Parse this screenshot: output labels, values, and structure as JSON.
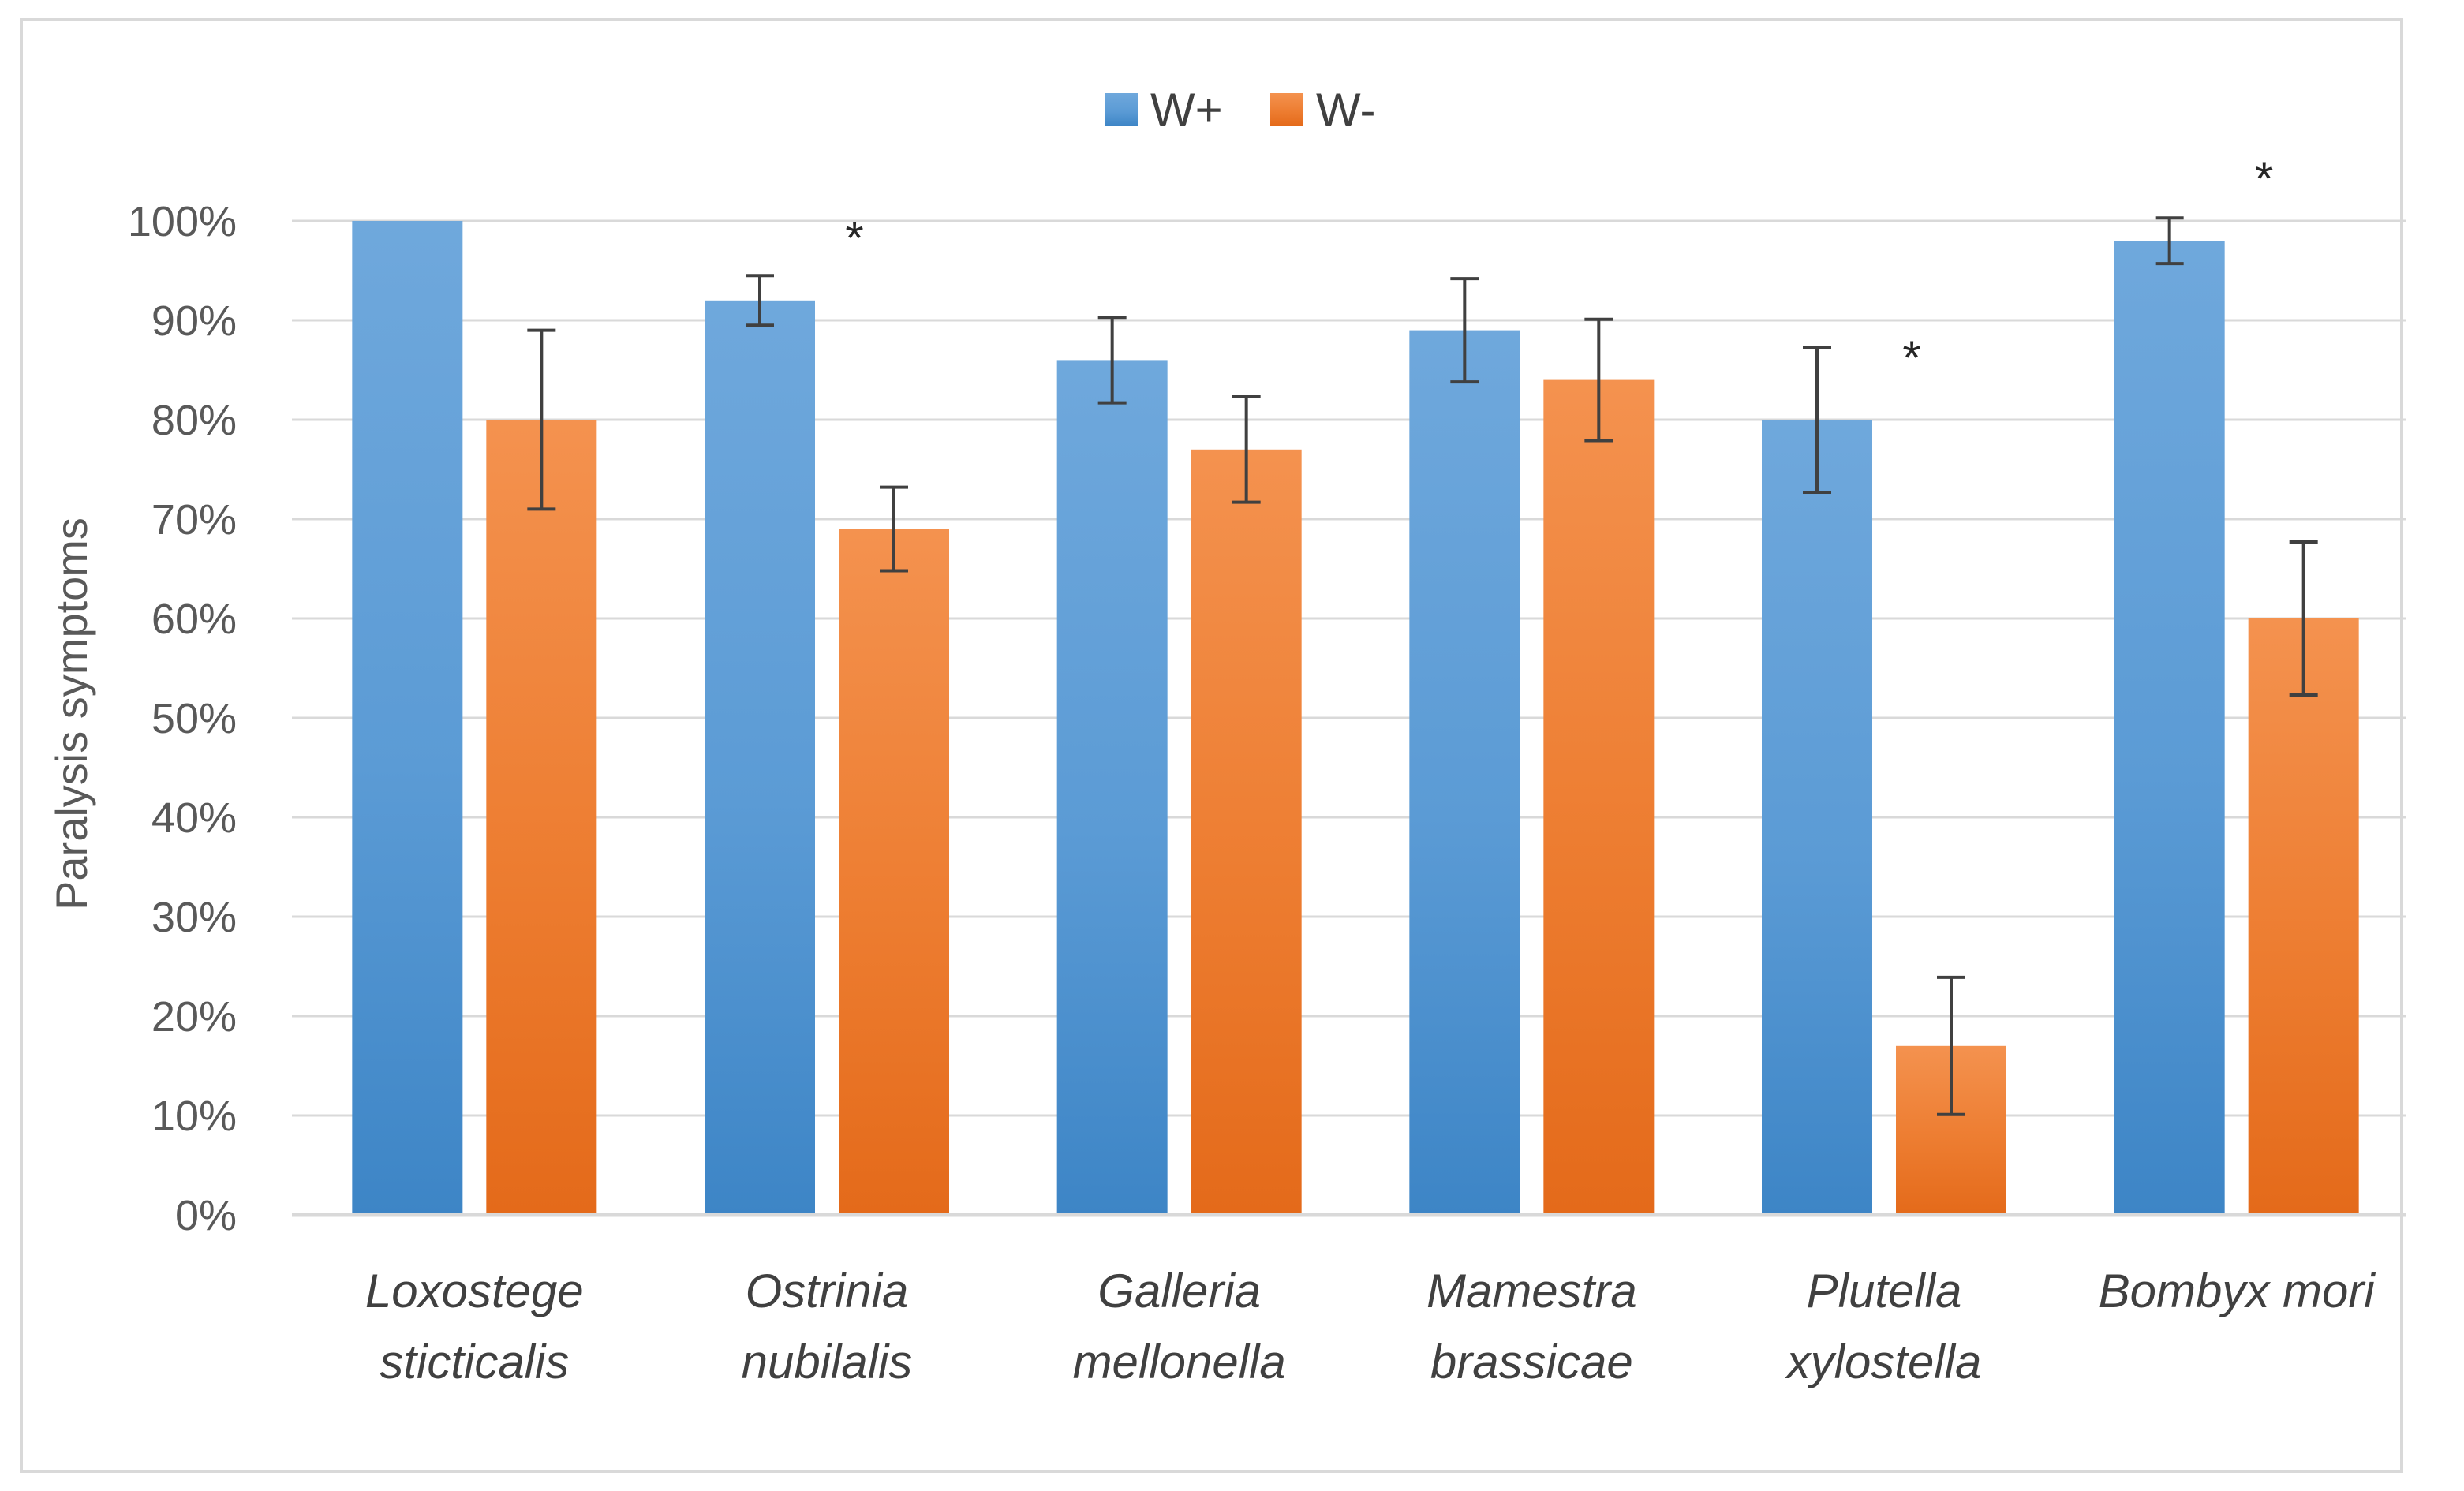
{
  "chart_data": {
    "type": "bar",
    "title": "",
    "xlabel": "",
    "ylabel": "Paralysis symptoms",
    "ylim": [
      0,
      100
    ],
    "yticks": [
      0,
      10,
      20,
      30,
      40,
      50,
      60,
      70,
      80,
      90,
      100
    ],
    "ytick_suffix": "%",
    "grid": true,
    "legend_position": "top-center",
    "categories": [
      [
        "Loxostege",
        "sticticalis"
      ],
      [
        "Ostrinia",
        "nubilalis"
      ],
      [
        "Galleria",
        "mellonella"
      ],
      [
        "Mamestra",
        "brassicae"
      ],
      [
        "Plutella",
        "xylostella"
      ],
      [
        "Bombyx mori"
      ]
    ],
    "series": [
      {
        "name": "W+",
        "color": "#5B9BD5",
        "color_top": "#6FA8DC",
        "color_bottom": "#3D85C6",
        "values": [
          100,
          92,
          86,
          89,
          80,
          98
        ],
        "errors": [
          0,
          2.5,
          4.3,
          5.2,
          7.3,
          2.3
        ]
      },
      {
        "name": "W-",
        "color": "#ED7D31",
        "color_top": "#F4924F",
        "color_bottom": "#E46A1A",
        "values": [
          80,
          69,
          77,
          84,
          17,
          60
        ],
        "errors": [
          9,
          4.2,
          5.3,
          6.1,
          6.9,
          7.7
        ]
      }
    ],
    "annotations": [
      {
        "category_index": 1,
        "text": "*",
        "y": 99
      },
      {
        "category_index": 4,
        "text": "*",
        "y": 87
      },
      {
        "category_index": 5,
        "text": "*",
        "y": 105
      }
    ]
  }
}
